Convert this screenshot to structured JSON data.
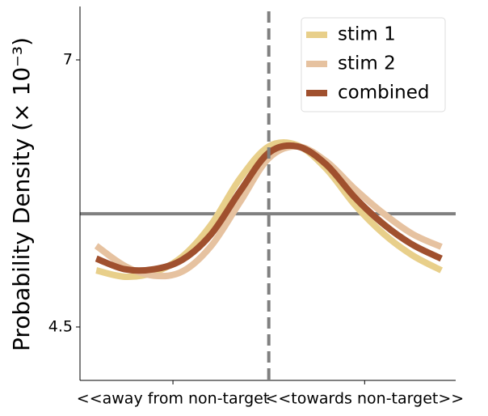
{
  "chart_data": {
    "type": "line",
    "ylabel": "Probability Density (× 10⁻³)",
    "x": [
      -1.8,
      -1.5,
      -1.2,
      -0.9,
      -0.6,
      -0.3,
      0,
      0.3,
      0.6,
      0.9,
      1.2,
      1.5,
      1.8
    ],
    "series": [
      {
        "name": "stim 1",
        "color": "#e8cf8a",
        "values": [
          5.03,
          4.97,
          5.01,
          5.16,
          5.46,
          5.89,
          6.19,
          6.2,
          5.98,
          5.64,
          5.37,
          5.17,
          5.03
        ]
      },
      {
        "name": "stim 2",
        "color": "#e6c2a0",
        "values": [
          5.26,
          5.07,
          4.98,
          5.02,
          5.26,
          5.67,
          6.08,
          6.19,
          6.05,
          5.79,
          5.56,
          5.37,
          5.25
        ]
      },
      {
        "name": "combined",
        "color": "#a0502e",
        "values": [
          5.14,
          5.04,
          5.04,
          5.13,
          5.37,
          5.77,
          6.13,
          6.19,
          6.02,
          5.71,
          5.46,
          5.27,
          5.14
        ]
      }
    ],
    "xlim": [
      -1.97,
      1.95
    ],
    "xticks": [
      {
        "value": -1,
        "label": "<<away from non-target"
      },
      {
        "value": 1,
        "label": "<<towards non-target>>"
      }
    ],
    "ylim": [
      4.0,
      7.5
    ],
    "yticks": [
      4.5,
      7.0
    ],
    "hline": 5.56,
    "vline": 0,
    "legend": "upper right"
  }
}
